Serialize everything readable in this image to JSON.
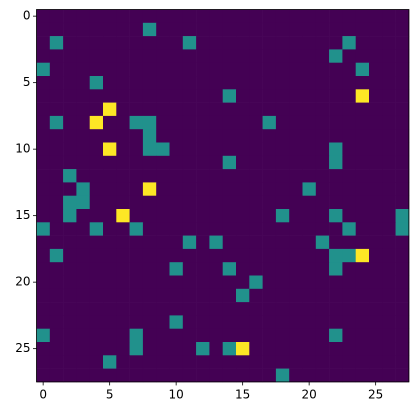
{
  "chart_data": {
    "type": "heatmap",
    "colormap": [
      "#440154",
      "#21918c",
      "#fde725"
    ],
    "vlim": [
      0,
      2
    ],
    "xlim": [
      -0.5,
      27.5
    ],
    "ylim": [
      27.5,
      -0.5
    ],
    "xticks": [
      0,
      5,
      10,
      15,
      20,
      25
    ],
    "yticks": [
      0,
      5,
      10,
      15,
      20,
      25
    ],
    "values": [
      [
        0,
        0,
        0,
        0,
        0,
        0,
        0,
        0,
        0,
        0,
        0,
        0,
        0,
        0,
        0,
        0,
        0,
        0,
        0,
        0,
        0,
        0,
        0,
        0,
        0,
        0,
        0,
        0
      ],
      [
        0,
        0,
        0,
        0,
        0,
        0,
        0,
        0,
        1,
        0,
        0,
        0,
        0,
        0,
        0,
        0,
        0,
        0,
        0,
        0,
        0,
        0,
        0,
        0,
        0,
        0,
        0,
        0
      ],
      [
        0,
        1,
        0,
        0,
        0,
        0,
        0,
        0,
        0,
        0,
        0,
        1,
        0,
        0,
        0,
        0,
        0,
        0,
        0,
        0,
        0,
        0,
        0,
        1,
        0,
        0,
        0,
        0
      ],
      [
        0,
        0,
        0,
        0,
        0,
        0,
        0,
        0,
        0,
        0,
        0,
        0,
        0,
        0,
        0,
        0,
        0,
        0,
        0,
        0,
        0,
        0,
        1,
        0,
        0,
        0,
        0,
        0
      ],
      [
        1,
        0,
        0,
        0,
        0,
        0,
        0,
        0,
        0,
        0,
        0,
        0,
        0,
        0,
        0,
        0,
        0,
        0,
        0,
        0,
        0,
        0,
        0,
        0,
        1,
        0,
        0,
        0
      ],
      [
        0,
        0,
        0,
        0,
        1,
        0,
        0,
        0,
        0,
        0,
        0,
        0,
        0,
        0,
        0,
        0,
        0,
        0,
        0,
        0,
        0,
        0,
        0,
        0,
        0,
        0,
        0,
        0
      ],
      [
        0,
        0,
        0,
        0,
        0,
        0,
        0,
        0,
        0,
        0,
        0,
        0,
        0,
        0,
        1,
        0,
        0,
        0,
        0,
        0,
        0,
        0,
        0,
        0,
        2,
        0,
        0,
        0
      ],
      [
        0,
        0,
        0,
        0,
        0,
        2,
        0,
        0,
        0,
        0,
        0,
        0,
        0,
        0,
        0,
        0,
        0,
        0,
        0,
        0,
        0,
        0,
        0,
        0,
        0,
        0,
        0,
        0
      ],
      [
        0,
        1,
        0,
        0,
        2,
        0,
        0,
        1,
        1,
        0,
        0,
        0,
        0,
        0,
        0,
        0,
        0,
        1,
        0,
        0,
        0,
        0,
        0,
        0,
        0,
        0,
        0,
        0
      ],
      [
        0,
        0,
        0,
        0,
        0,
        0,
        0,
        0,
        1,
        0,
        0,
        0,
        0,
        0,
        0,
        0,
        0,
        0,
        0,
        0,
        0,
        0,
        0,
        0,
        0,
        0,
        0,
        0
      ],
      [
        0,
        0,
        0,
        0,
        0,
        2,
        0,
        0,
        1,
        1,
        0,
        0,
        0,
        0,
        0,
        0,
        0,
        0,
        0,
        0,
        0,
        0,
        1,
        0,
        0,
        0,
        0,
        0
      ],
      [
        0,
        0,
        0,
        0,
        0,
        0,
        0,
        0,
        0,
        0,
        0,
        0,
        0,
        0,
        1,
        0,
        0,
        0,
        0,
        0,
        0,
        0,
        1,
        0,
        0,
        0,
        0,
        0
      ],
      [
        0,
        0,
        1,
        0,
        0,
        0,
        0,
        0,
        0,
        0,
        0,
        0,
        0,
        0,
        0,
        0,
        0,
        0,
        0,
        0,
        0,
        0,
        0,
        0,
        0,
        0,
        0,
        0
      ],
      [
        0,
        0,
        0,
        1,
        0,
        0,
        0,
        0,
        2,
        0,
        0,
        0,
        0,
        0,
        0,
        0,
        0,
        0,
        0,
        0,
        1,
        0,
        0,
        0,
        0,
        0,
        0,
        0
      ],
      [
        0,
        0,
        1,
        1,
        0,
        0,
        0,
        0,
        0,
        0,
        0,
        0,
        0,
        0,
        0,
        0,
        0,
        0,
        0,
        0,
        0,
        0,
        0,
        0,
        0,
        0,
        0,
        0
      ],
      [
        0,
        0,
        1,
        0,
        0,
        0,
        2,
        0,
        0,
        0,
        0,
        0,
        0,
        0,
        0,
        0,
        0,
        0,
        1,
        0,
        0,
        0,
        1,
        0,
        0,
        0,
        0,
        1
      ],
      [
        1,
        0,
        0,
        0,
        1,
        0,
        0,
        1,
        0,
        0,
        0,
        0,
        0,
        0,
        0,
        0,
        0,
        0,
        0,
        0,
        0,
        0,
        0,
        1,
        0,
        0,
        0,
        1
      ],
      [
        0,
        0,
        0,
        0,
        0,
        0,
        0,
        0,
        0,
        0,
        0,
        1,
        0,
        1,
        0,
        0,
        0,
        0,
        0,
        0,
        0,
        1,
        0,
        0,
        0,
        0,
        0,
        0
      ],
      [
        0,
        1,
        0,
        0,
        0,
        0,
        0,
        0,
        0,
        0,
        0,
        0,
        0,
        0,
        0,
        0,
        0,
        0,
        0,
        0,
        0,
        0,
        1,
        1,
        2,
        0,
        0,
        0
      ],
      [
        0,
        0,
        0,
        0,
        0,
        0,
        0,
        0,
        0,
        0,
        1,
        0,
        0,
        0,
        1,
        0,
        0,
        0,
        0,
        0,
        0,
        0,
        1,
        0,
        0,
        0,
        0,
        0
      ],
      [
        0,
        0,
        0,
        0,
        0,
        0,
        0,
        0,
        0,
        0,
        0,
        0,
        0,
        0,
        0,
        0,
        1,
        0,
        0,
        0,
        0,
        0,
        0,
        0,
        0,
        0,
        0,
        0
      ],
      [
        0,
        0,
        0,
        0,
        0,
        0,
        0,
        0,
        0,
        0,
        0,
        0,
        0,
        0,
        0,
        1,
        0,
        0,
        0,
        0,
        0,
        0,
        0,
        0,
        0,
        0,
        0,
        0
      ],
      [
        0,
        0,
        0,
        0,
        0,
        0,
        0,
        0,
        0,
        0,
        0,
        0,
        0,
        0,
        0,
        0,
        0,
        0,
        0,
        0,
        0,
        0,
        0,
        0,
        0,
        0,
        0,
        0
      ],
      [
        0,
        0,
        0,
        0,
        0,
        0,
        0,
        0,
        0,
        0,
        1,
        0,
        0,
        0,
        0,
        0,
        0,
        0,
        0,
        0,
        0,
        0,
        0,
        0,
        0,
        0,
        0,
        0
      ],
      [
        1,
        0,
        0,
        0,
        0,
        0,
        0,
        1,
        0,
        0,
        0,
        0,
        0,
        0,
        0,
        0,
        0,
        0,
        0,
        0,
        0,
        0,
        1,
        0,
        0,
        0,
        0,
        0
      ],
      [
        0,
        0,
        0,
        0,
        0,
        0,
        0,
        1,
        0,
        0,
        0,
        0,
        1,
        0,
        1,
        2,
        0,
        0,
        0,
        0,
        0,
        0,
        0,
        0,
        0,
        0,
        0,
        0
      ],
      [
        0,
        0,
        0,
        0,
        0,
        1,
        0,
        0,
        0,
        0,
        0,
        0,
        0,
        0,
        0,
        0,
        0,
        0,
        0,
        0,
        0,
        0,
        0,
        0,
        0,
        0,
        0,
        0
      ],
      [
        0,
        0,
        0,
        0,
        0,
        0,
        0,
        0,
        0,
        0,
        0,
        0,
        0,
        0,
        0,
        0,
        0,
        0,
        1,
        0,
        0,
        0,
        0,
        0,
        0,
        0,
        0,
        0
      ]
    ]
  }
}
